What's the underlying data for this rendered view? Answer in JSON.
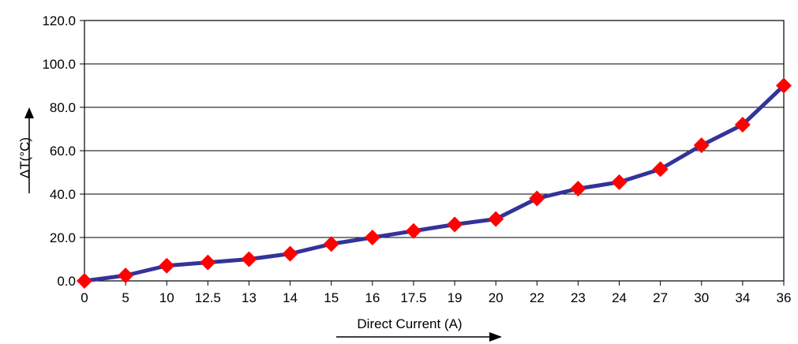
{
  "chart_data": {
    "type": "line",
    "title": "",
    "xlabel": "Direct Current (A)",
    "ylabel": "ΔT(°C)",
    "categories": [
      "0",
      "5",
      "10",
      "12.5",
      "13",
      "14",
      "15",
      "16",
      "17.5",
      "19",
      "20",
      "22",
      "23",
      "24",
      "27",
      "30",
      "34",
      "36"
    ],
    "series": [
      {
        "values": [
          0.0,
          2.5,
          7.0,
          8.5,
          10.0,
          12.5,
          17.0,
          20.0,
          23.0,
          26.0,
          28.5,
          38.0,
          42.5,
          45.5,
          51.5,
          62.5,
          72.0,
          90.0
        ]
      }
    ],
    "ylim": [
      0,
      120
    ],
    "yticks": [
      "0.0",
      "20.0",
      "40.0",
      "60.0",
      "80.0",
      "100.0",
      "120.0"
    ],
    "grid": "horizontal",
    "line_color": "#333399",
    "marker_color": "#ff0000",
    "marker": "diamond"
  }
}
